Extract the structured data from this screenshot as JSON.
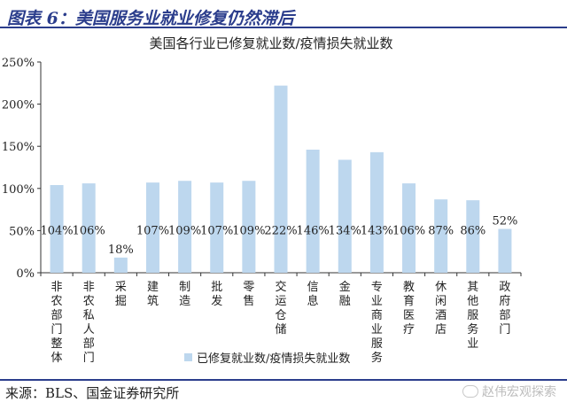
{
  "figure": {
    "title": "图表 6：美国服务业就业修复仍然滞后",
    "source": "来源：BLS、国金证券研究所",
    "watermark": "赵伟宏观探索"
  },
  "colors": {
    "bar": "#bdd7ee",
    "header_blue": "#2b3d8c",
    "text": "#222222"
  },
  "chart_data": {
    "type": "bar",
    "title": "美国各行业已修复就业数/疫情损失就业数",
    "categories": [
      "非农部门整体",
      "非农私人部门",
      "采掘",
      "建筑",
      "制造",
      "批发",
      "零售",
      "交运仓储",
      "信息",
      "金融",
      "专业商业服务",
      "教育医疗",
      "休闲酒店",
      "其他服务业",
      "政府部门"
    ],
    "series": [
      {
        "name": "已修复就业数/疫情损失就业数",
        "values": [
          104,
          106,
          18,
          107,
          109,
          107,
          109,
          222,
          146,
          134,
          143,
          106,
          87,
          86,
          52
        ],
        "labels": [
          "104%",
          "106%",
          "18%",
          "107%",
          "109%",
          "107%",
          "109%",
          "222%",
          "146%",
          "134%",
          "143%",
          "106%",
          "87%",
          "86%",
          "52%"
        ]
      }
    ],
    "ylim": [
      0,
      250
    ],
    "yticks": [
      "0%",
      "50%",
      "100%",
      "150%",
      "200%",
      "250%"
    ],
    "unit": "%",
    "grid": false,
    "legend": "bottom"
  }
}
